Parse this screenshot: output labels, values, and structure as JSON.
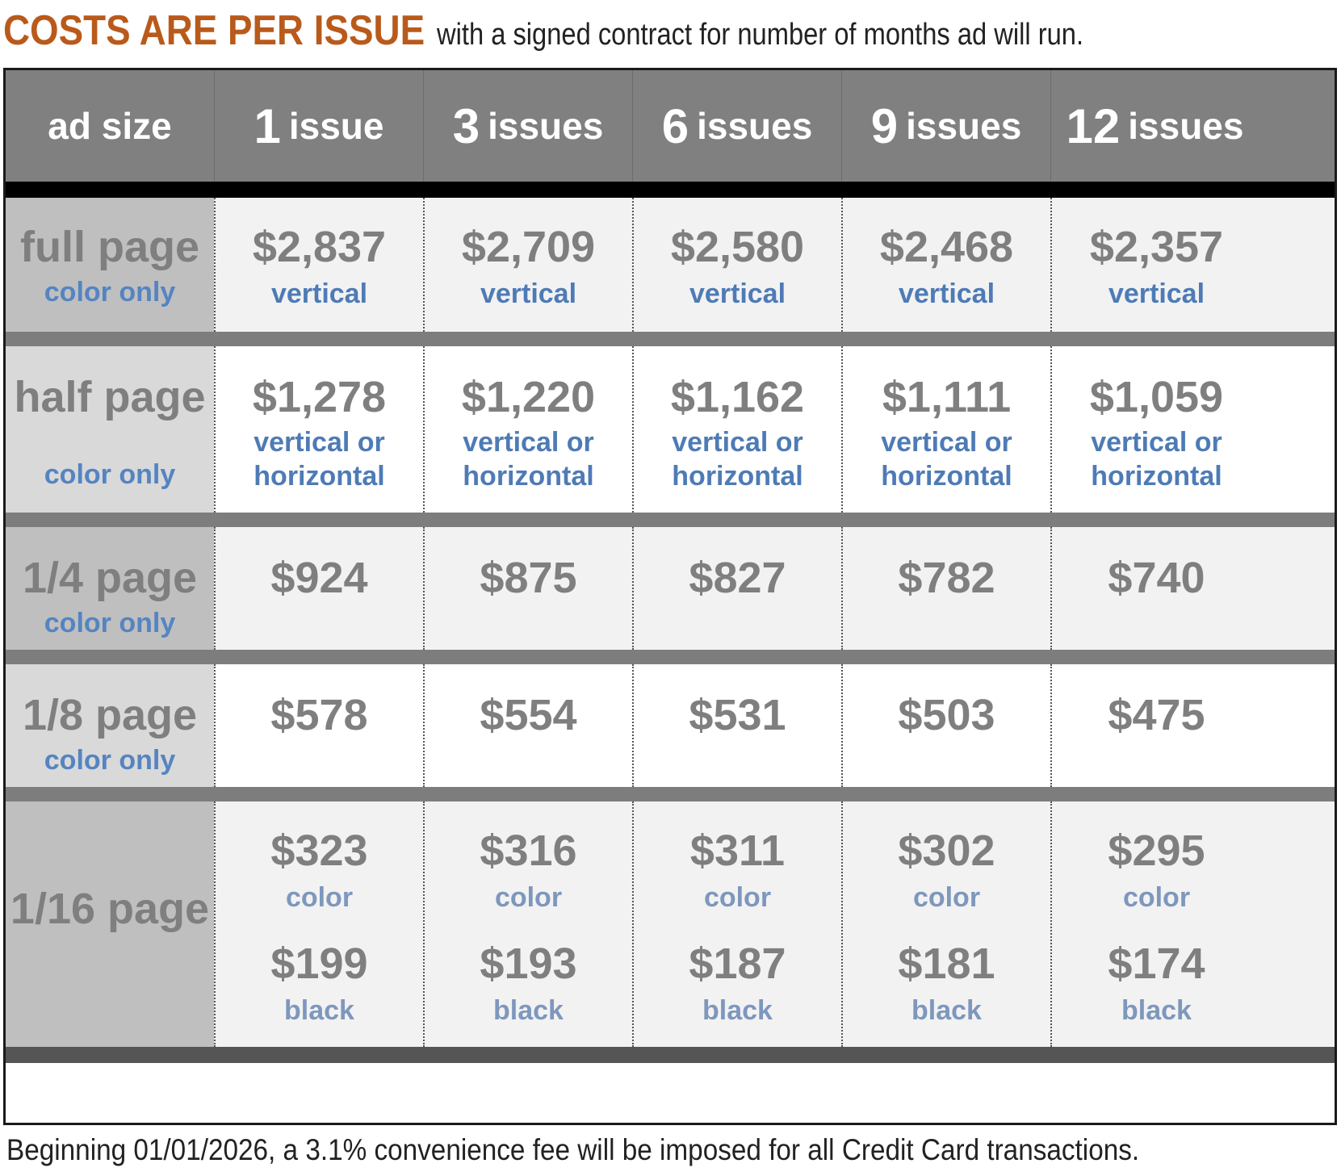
{
  "headline": {
    "lead": "COSTS ARE PER ISSUE",
    "rest": "with a signed contract for number of months ad will run."
  },
  "header": {
    "ad_size": "ad size",
    "columns": [
      {
        "count": "1",
        "unit": "issue"
      },
      {
        "count": "3",
        "unit": "issues"
      },
      {
        "count": "6",
        "unit": "issues"
      },
      {
        "count": "9",
        "unit": "issues"
      },
      {
        "count": "12",
        "unit": "issues"
      }
    ]
  },
  "rows": [
    {
      "size": "full page",
      "note": "color only",
      "cells": [
        {
          "price": "$2,837",
          "note": "vertical"
        },
        {
          "price": "$2,709",
          "note": "vertical"
        },
        {
          "price": "$2,580",
          "note": "vertical"
        },
        {
          "price": "$2,468",
          "note": "vertical"
        },
        {
          "price": "$2,357",
          "note": "vertical"
        }
      ]
    },
    {
      "size": "half page",
      "note": "color only",
      "cells": [
        {
          "price": "$1,278",
          "note1": "vertical or",
          "note2": "horizontal"
        },
        {
          "price": "$1,220",
          "note1": "vertical or",
          "note2": "horizontal"
        },
        {
          "price": "$1,162",
          "note1": "vertical or",
          "note2": "horizontal"
        },
        {
          "price": "$1,111",
          "note1": "vertical or",
          "note2": "horizontal"
        },
        {
          "price": "$1,059",
          "note1": "vertical or",
          "note2": "horizontal"
        }
      ]
    },
    {
      "size": "1/4 page",
      "note": "color only",
      "cells": [
        {
          "price": "$924"
        },
        {
          "price": "$875"
        },
        {
          "price": "$827"
        },
        {
          "price": "$782"
        },
        {
          "price": "$740"
        }
      ]
    },
    {
      "size": "1/8 page",
      "note": "color only",
      "cells": [
        {
          "price": "$578"
        },
        {
          "price": "$554"
        },
        {
          "price": "$531"
        },
        {
          "price": "$503"
        },
        {
          "price": "$475"
        }
      ]
    },
    {
      "size": "1/16 page",
      "cells": [
        {
          "color_price": "$323",
          "color_label": "color",
          "black_price": "$199",
          "black_label": "black"
        },
        {
          "color_price": "$316",
          "color_label": "color",
          "black_price": "$193",
          "black_label": "black"
        },
        {
          "color_price": "$311",
          "color_label": "color",
          "black_price": "$187",
          "black_label": "black"
        },
        {
          "color_price": "$302",
          "color_label": "color",
          "black_price": "$181",
          "black_label": "black"
        },
        {
          "color_price": "$295",
          "color_label": "color",
          "black_price": "$174",
          "black_label": "black"
        }
      ]
    }
  ],
  "footnote": "Beginning 01/01/2026, a 3.1% convenience fee will be imposed for all Credit Card transactions.",
  "colors": {
    "headline_orange": "#b95a1b",
    "header_gray": "#808080",
    "price_gray": "#7f7f7f",
    "note_blue": "#4e7bb6"
  }
}
